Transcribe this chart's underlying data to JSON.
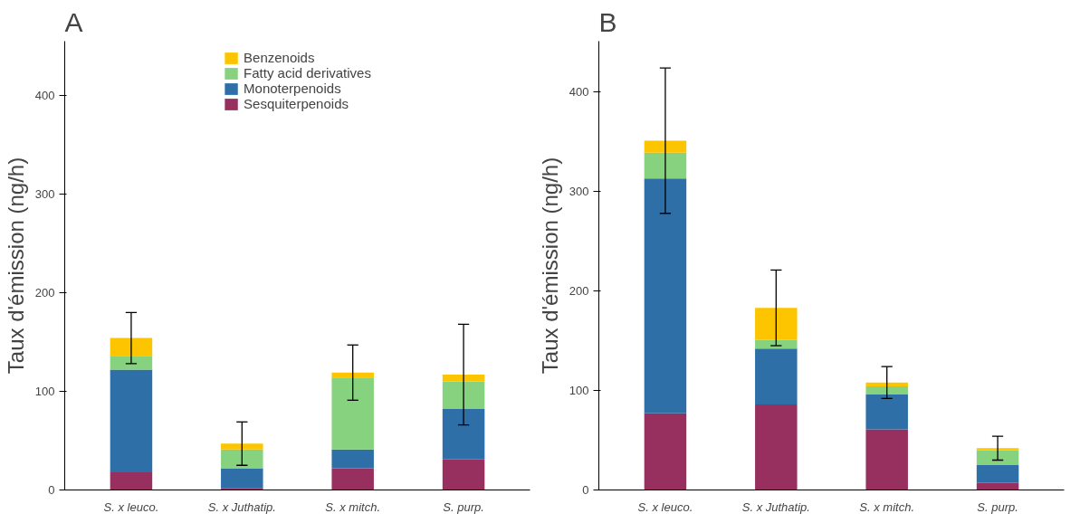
{
  "chart_data": [
    {
      "type": "bar",
      "title": "A",
      "ylabel": "Taux d'émission (ng/h)",
      "categories": [
        "S. x leuco.",
        "S. x Juthatip.",
        "S. x mitch.",
        "S. purp."
      ],
      "stacked": true,
      "ylim": [
        0,
        455
      ],
      "yticks": [
        0,
        100,
        200,
        300,
        400
      ],
      "grid": false,
      "legend": "top",
      "series": [
        {
          "name": "Sesquiterpenoids",
          "color": "#98305f",
          "values": [
            18,
            2,
            22,
            31
          ]
        },
        {
          "name": "Monoterpenoids",
          "color": "#2e6fa8",
          "values": [
            104,
            20,
            19,
            51
          ]
        },
        {
          "name": "Fatty acid derivatives",
          "color": "#86d27f",
          "values": [
            14,
            19,
            73,
            28
          ]
        },
        {
          "name": "Benzenoids",
          "color": "#fdc400",
          "values": [
            18,
            6,
            5,
            7
          ],
          "errors": [
            26,
            22,
            28,
            51
          ]
        }
      ]
    },
    {
      "type": "bar",
      "title": "B",
      "ylabel": "Taux d'émission (ng/h)",
      "categories": [
        "S. x leuco.",
        "S. x Juthatip.",
        "S. x mitch.",
        "S. purp."
      ],
      "stacked": true,
      "ylim": [
        0,
        451
      ],
      "yticks": [
        0,
        100,
        200,
        300,
        400
      ],
      "grid": false,
      "legend": false,
      "series": [
        {
          "color": "#98305f",
          "values": [
            77,
            86,
            61,
            7
          ]
        },
        {
          "color": "#2e6fa8",
          "values": [
            236,
            56,
            35,
            18
          ]
        },
        {
          "color": "#86d27f",
          "values": [
            26,
            9,
            8,
            15
          ]
        },
        {
          "color": "#fdc400",
          "values": [
            12,
            32,
            4,
            2
          ],
          "errors": [
            73,
            38,
            16,
            12
          ]
        }
      ]
    }
  ]
}
